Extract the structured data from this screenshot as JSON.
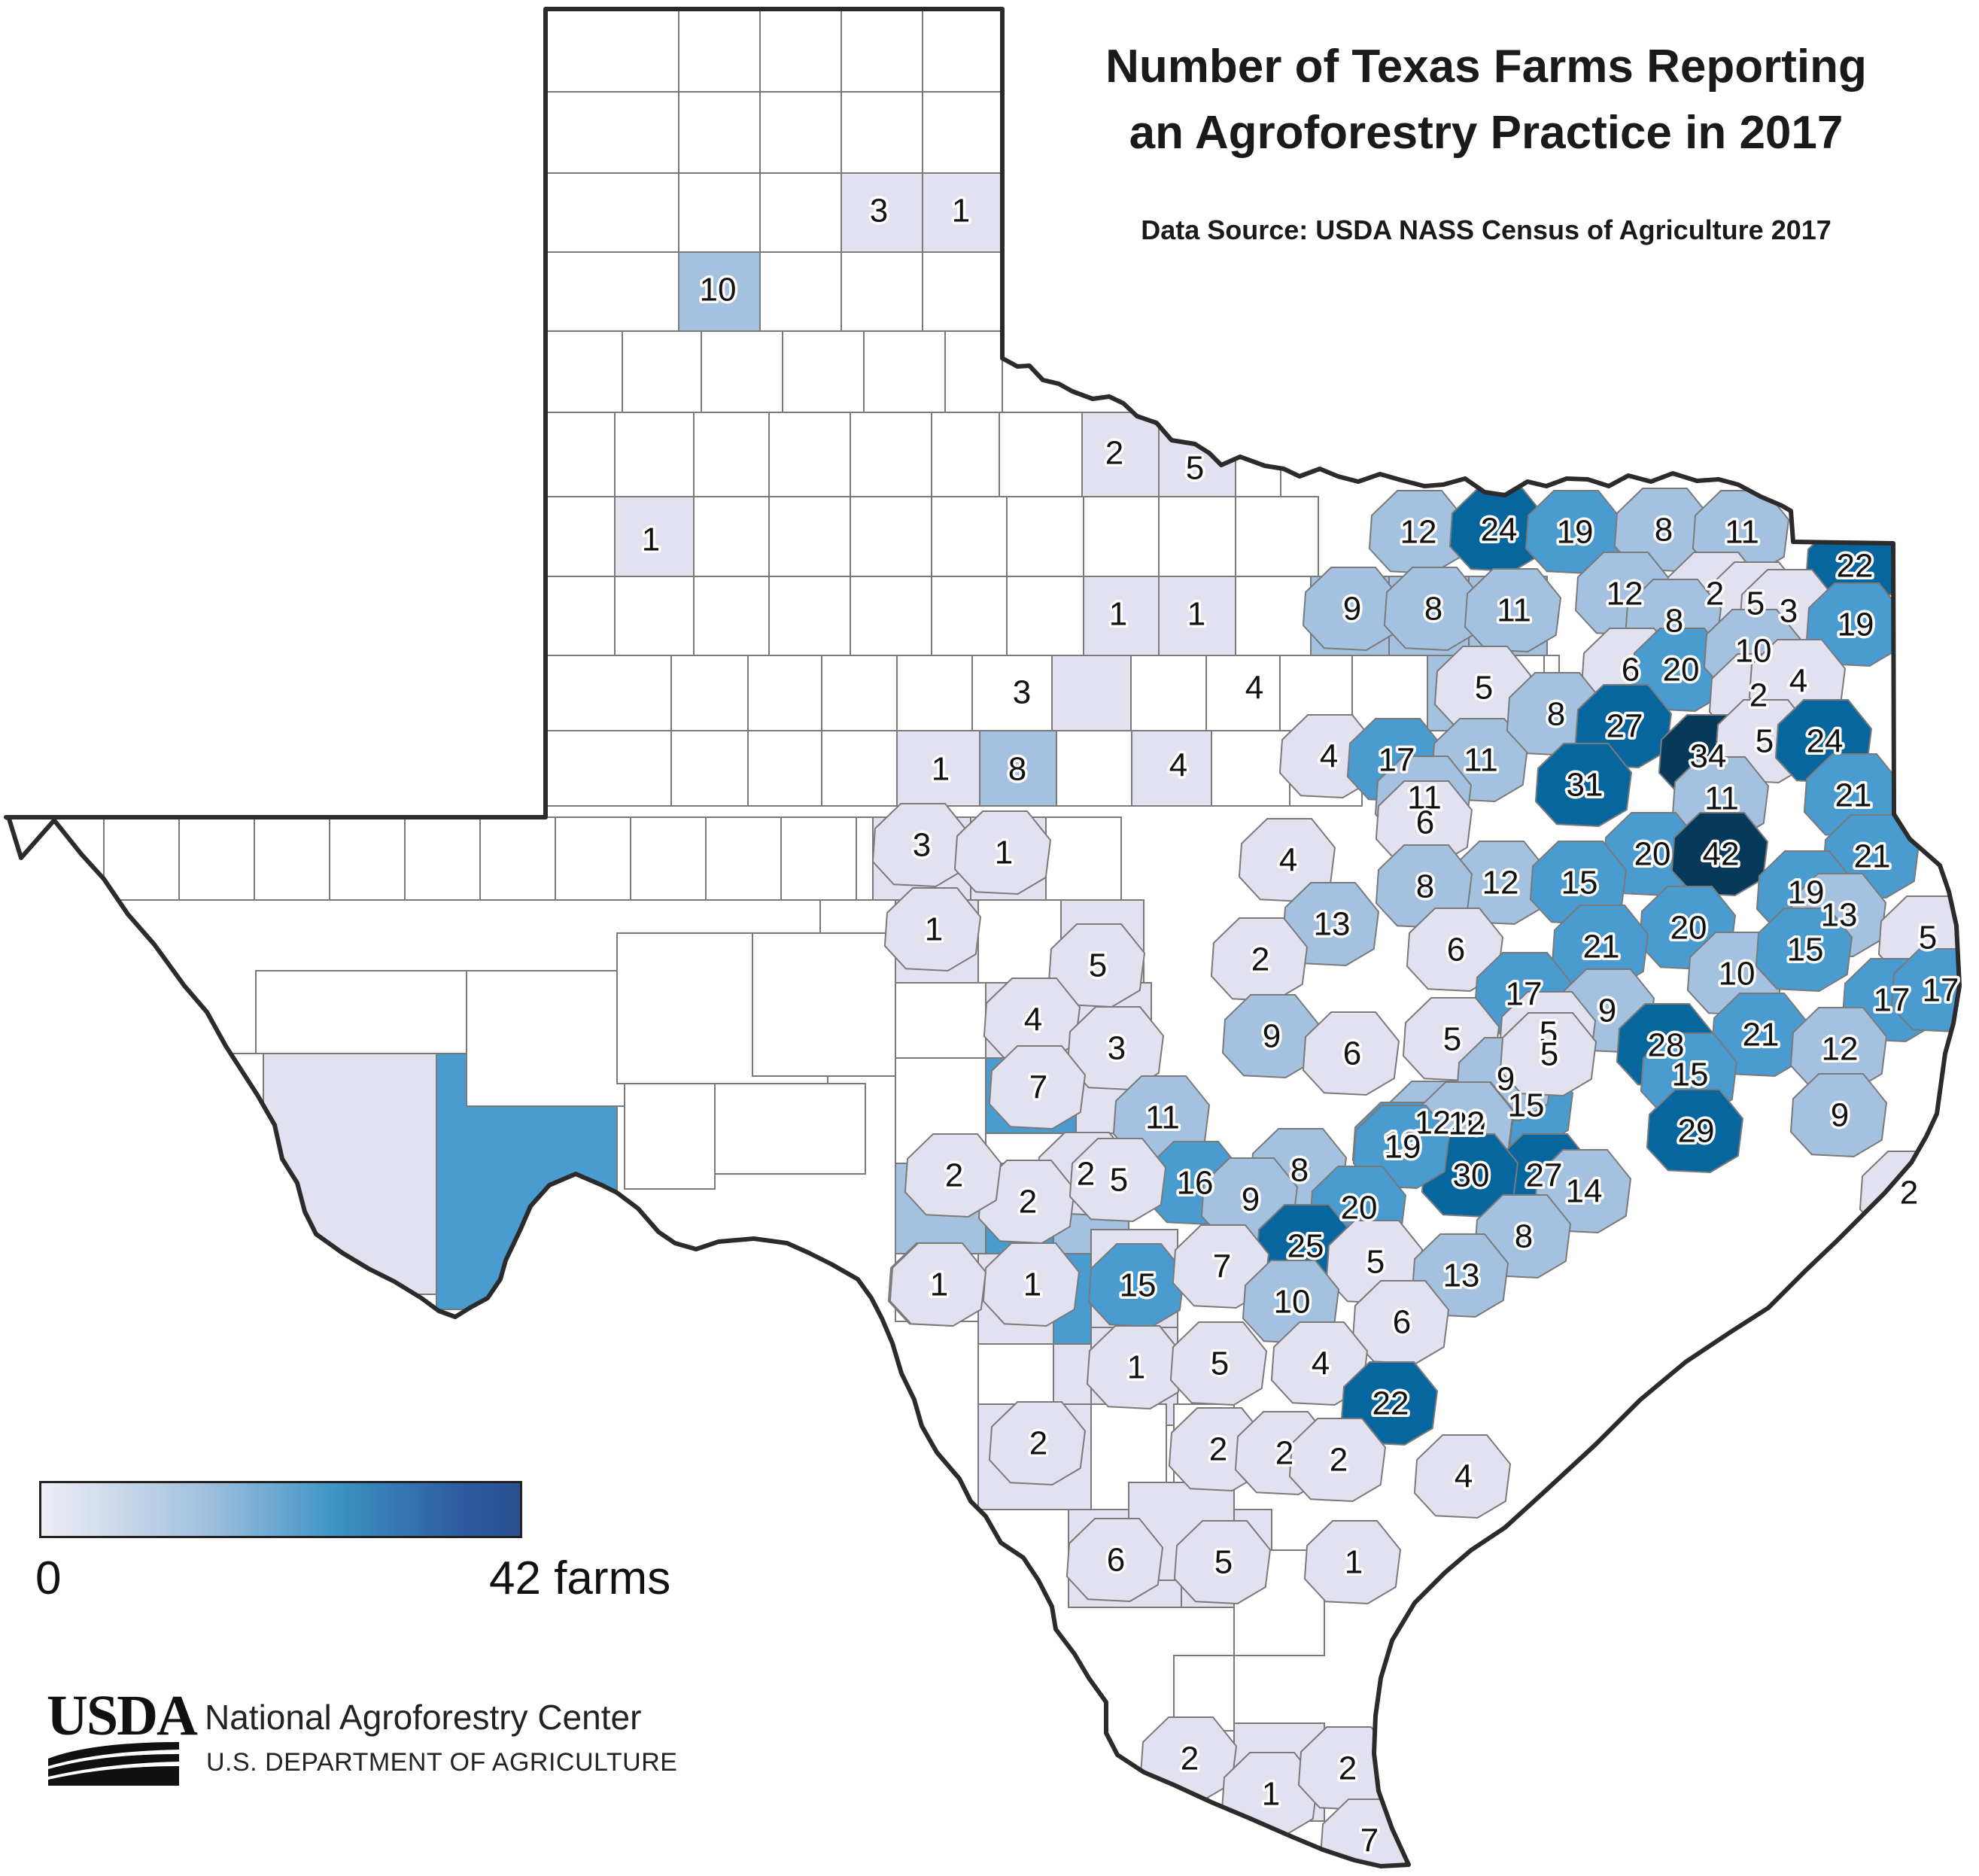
{
  "title_line1": "Number of Texas Farms Reporting",
  "title_line2": "an Agroforestry Practice in 2017",
  "source": "Data Source: USDA NASS Census of Agriculture 2017",
  "legend": {
    "min_label": "0",
    "max_label": "42 farms",
    "min_value": 0,
    "max_value": 42,
    "colors": [
      "#efeef5",
      "#9fbfdd",
      "#3a93c4",
      "#2d5aa0"
    ]
  },
  "footer": {
    "logo_text": "USDA",
    "agency": "National Agroforestry Center",
    "department": "U.S. DEPARTMENT OF AGRICULTURE"
  },
  "colors": {
    "zero": "#ffffff",
    "low": "#e2e1ef",
    "light": "#a4c1e0",
    "mid": "#4a9bcf",
    "darkblue": "#08669f",
    "navy": "#073a5a",
    "border": "#7a7a7a",
    "outline": "#2b2b2b"
  },
  "chart_data": {
    "type": "choropleth",
    "county_values": [
      3,
      1,
      10,
      2,
      5,
      1,
      1,
      1,
      12,
      24,
      19,
      8,
      11,
      22,
      9,
      8,
      11,
      12,
      2,
      5,
      3,
      19,
      8,
      3,
      4,
      5,
      6,
      20,
      10,
      2,
      4,
      1,
      8,
      4,
      4,
      17,
      11,
      8,
      27,
      34,
      5,
      24,
      3,
      1,
      11,
      6,
      31,
      11,
      21,
      1,
      4,
      20,
      42,
      21,
      12,
      15,
      8,
      19,
      13,
      5,
      5,
      13,
      2,
      6,
      20,
      10,
      15,
      4,
      21,
      17,
      17,
      9,
      3,
      9,
      5,
      5,
      17,
      15,
      6,
      9,
      28,
      21,
      12,
      7,
      11,
      20,
      12,
      15,
      5,
      19,
      12,
      29,
      9,
      2,
      2,
      8,
      2,
      16,
      9,
      2,
      27,
      14,
      30,
      19,
      20,
      1,
      5,
      25,
      8,
      1,
      1,
      15,
      7,
      5,
      13,
      10,
      6,
      1,
      5,
      4,
      22,
      2,
      2,
      2,
      2,
      4,
      6,
      5,
      1,
      2,
      1,
      2,
      7
    ]
  }
}
